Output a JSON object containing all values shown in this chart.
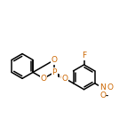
{
  "bg_color": "#ffffff",
  "bond_color": "#000000",
  "atom_colors": {
    "O": "#cc6600",
    "P": "#cc6600",
    "N": "#cc6600",
    "F": "#cc6600"
  },
  "figsize": [
    1.52,
    1.52
  ],
  "dpi": 100,
  "lw": 1.1,
  "fs": 6.5
}
